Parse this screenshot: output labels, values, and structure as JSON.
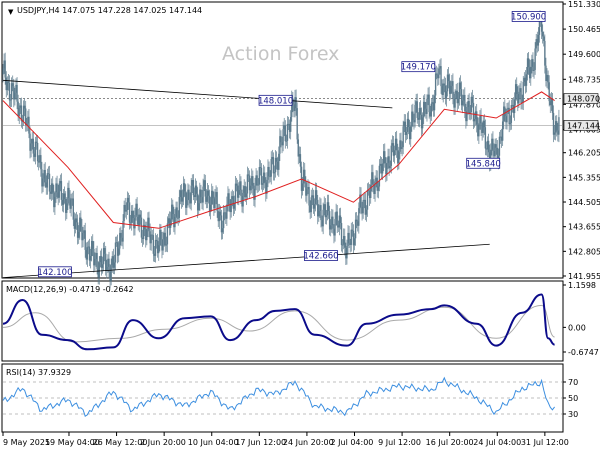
{
  "watermark": "Action Forex",
  "main": {
    "header": "USDJPY,H4  147.075 147.228 147.025 147.144",
    "price_ticks": [
      "151.330",
      "150.465",
      "149.600",
      "148.735",
      "147.870",
      "147.005",
      "146.205",
      "145.355",
      "144.505",
      "143.655",
      "142.805",
      "141.955"
    ],
    "current_price": "147.144",
    "level_price": "148.070",
    "annotations": [
      {
        "label": "150.900",
        "value": 150.9
      },
      {
        "label": "149.170",
        "value": 149.17
      },
      {
        "label": "148.010",
        "value": 148.01
      },
      {
        "label": "145.840",
        "value": 145.84
      },
      {
        "label": "142.660",
        "value": 142.66
      },
      {
        "label": "142.100",
        "value": 142.1
      }
    ]
  },
  "macd": {
    "header": "MACD(12,26,9) -0.4719 -0.2642",
    "ticks": [
      "1.1598",
      "0.00",
      "-0.6747"
    ]
  },
  "rsi": {
    "header": "RSI(14) 37.9329",
    "ticks": [
      "70",
      "50",
      "30"
    ]
  },
  "x_ticks": [
    "9 May 2025",
    "19 May 04:00",
    "26 May 12:00",
    "2 Jun 20:00",
    "10 Jun 04:00",
    "17 Jun 12:00",
    "24 Jun 20:00",
    "2 Jul 04:00",
    "9 Jul 12:00",
    "16 Jul 20:00",
    "24 Jul 04:00",
    "31 Jul 12:00"
  ],
  "colors": {
    "candle": "#5b7a8c",
    "ma": "#e02020",
    "macd_line": "#0b0b8a",
    "signal": "#aaaaaa",
    "rsi": "#3d8fe0",
    "trend": "#000000",
    "annotation_border": "#1a1a8c"
  },
  "chart_data": [
    {
      "type": "candlestick",
      "title": "USDJPY,H4",
      "ylim": [
        141.955,
        151.33
      ],
      "ohlc_last": {
        "open": 147.075,
        "high": 147.228,
        "low": 147.025,
        "close": 147.144
      },
      "close_path": [
        {
          "x": "2025-05-09",
          "y": 148.9
        },
        {
          "x": "2025-05-12",
          "y": 147.6
        },
        {
          "x": "2025-05-14",
          "y": 146.2
        },
        {
          "x": "2025-05-16",
          "y": 145.0
        },
        {
          "x": "2025-05-19",
          "y": 144.6
        },
        {
          "x": "2025-05-21",
          "y": 143.4
        },
        {
          "x": "2025-05-23",
          "y": 142.5
        },
        {
          "x": "2025-05-26",
          "y": 142.3
        },
        {
          "x": "2025-05-28",
          "y": 144.3
        },
        {
          "x": "2025-05-30",
          "y": 143.8
        },
        {
          "x": "2025-06-02",
          "y": 142.9
        },
        {
          "x": "2025-06-04",
          "y": 143.9
        },
        {
          "x": "2025-06-06",
          "y": 144.8
        },
        {
          "x": "2025-06-10",
          "y": 144.7
        },
        {
          "x": "2025-06-12",
          "y": 143.8
        },
        {
          "x": "2025-06-13",
          "y": 144.6
        },
        {
          "x": "2025-06-17",
          "y": 145.2
        },
        {
          "x": "2025-06-19",
          "y": 145.4
        },
        {
          "x": "2025-06-20",
          "y": 145.9
        },
        {
          "x": "2025-06-23",
          "y": 147.9
        },
        {
          "x": "2025-06-24",
          "y": 145.2
        },
        {
          "x": "2025-06-26",
          "y": 144.4
        },
        {
          "x": "2025-06-30",
          "y": 143.6
        },
        {
          "x": "2025-07-01",
          "y": 142.8
        },
        {
          "x": "2025-07-03",
          "y": 144.2
        },
        {
          "x": "2025-07-07",
          "y": 145.9
        },
        {
          "x": "2025-07-09",
          "y": 146.4
        },
        {
          "x": "2025-07-11",
          "y": 147.4
        },
        {
          "x": "2025-07-14",
          "y": 147.8
        },
        {
          "x": "2025-07-15",
          "y": 148.9
        },
        {
          "x": "2025-07-16",
          "y": 148.5
        },
        {
          "x": "2025-07-18",
          "y": 148.2
        },
        {
          "x": "2025-07-21",
          "y": 147.4
        },
        {
          "x": "2025-07-23",
          "y": 146.3
        },
        {
          "x": "2025-07-24",
          "y": 146.1
        },
        {
          "x": "2025-07-25",
          "y": 147.2
        },
        {
          "x": "2025-07-28",
          "y": 148.4
        },
        {
          "x": "2025-07-30",
          "y": 149.6
        },
        {
          "x": "2025-07-31",
          "y": 150.8
        },
        {
          "x": "2025-08-01",
          "y": 148.2
        },
        {
          "x": "2025-08-02",
          "y": 147.144
        }
      ],
      "moving_average": [
        {
          "x": "2025-05-09",
          "y": 148.0
        },
        {
          "x": "2025-05-19",
          "y": 145.7
        },
        {
          "x": "2025-05-26",
          "y": 143.8
        },
        {
          "x": "2025-06-02",
          "y": 143.6
        },
        {
          "x": "2025-06-10",
          "y": 144.2
        },
        {
          "x": "2025-06-17",
          "y": 144.7
        },
        {
          "x": "2025-06-24",
          "y": 145.3
        },
        {
          "x": "2025-07-02",
          "y": 144.5
        },
        {
          "x": "2025-07-09",
          "y": 145.8
        },
        {
          "x": "2025-07-16",
          "y": 147.7
        },
        {
          "x": "2025-07-24",
          "y": 147.4
        },
        {
          "x": "2025-07-31",
          "y": 148.3
        },
        {
          "x": "2025-08-02",
          "y": 148.0
        }
      ],
      "trendlines": [
        {
          "from": {
            "x": "2025-05-09",
            "y": 148.7
          },
          "to": {
            "x": "2025-07-08",
            "y": 147.75
          }
        },
        {
          "from": {
            "x": "2025-05-09",
            "y": 141.9
          },
          "to": {
            "x": "2025-07-23",
            "y": 143.05
          }
        }
      ]
    },
    {
      "type": "line",
      "title": "MACD(12,26,9)",
      "ylim": [
        -0.6747,
        1.1598
      ],
      "series": [
        {
          "name": "MACD",
          "values": [
            {
              "x": "2025-05-09",
              "y": 0.1
            },
            {
              "x": "2025-05-12",
              "y": 0.75
            },
            {
              "x": "2025-05-15",
              "y": -0.2
            },
            {
              "x": "2025-05-19",
              "y": -0.35
            },
            {
              "x": "2025-05-22",
              "y": -0.6
            },
            {
              "x": "2025-05-26",
              "y": -0.55
            },
            {
              "x": "2025-05-29",
              "y": 0.2
            },
            {
              "x": "2025-06-02",
              "y": -0.3
            },
            {
              "x": "2025-06-06",
              "y": 0.25
            },
            {
              "x": "2025-06-10",
              "y": 0.3
            },
            {
              "x": "2025-06-13",
              "y": -0.35
            },
            {
              "x": "2025-06-17",
              "y": 0.2
            },
            {
              "x": "2025-06-20",
              "y": 0.45
            },
            {
              "x": "2025-06-23",
              "y": 0.5
            },
            {
              "x": "2025-06-26",
              "y": -0.2
            },
            {
              "x": "2025-07-01",
              "y": -0.5
            },
            {
              "x": "2025-07-04",
              "y": 0.1
            },
            {
              "x": "2025-07-09",
              "y": 0.35
            },
            {
              "x": "2025-07-14",
              "y": 0.5
            },
            {
              "x": "2025-07-16",
              "y": 0.6
            },
            {
              "x": "2025-07-21",
              "y": 0.1
            },
            {
              "x": "2025-07-24",
              "y": -0.5
            },
            {
              "x": "2025-07-28",
              "y": 0.4
            },
            {
              "x": "2025-07-31",
              "y": 0.9
            },
            {
              "x": "2025-08-01",
              "y": -0.3
            },
            {
              "x": "2025-08-02",
              "y": -0.4719
            }
          ]
        },
        {
          "name": "Signal",
          "values": [
            {
              "x": "2025-05-09",
              "y": 0.0
            },
            {
              "x": "2025-05-14",
              "y": 0.4
            },
            {
              "x": "2025-05-20",
              "y": -0.4
            },
            {
              "x": "2025-05-27",
              "y": -0.3
            },
            {
              "x": "2025-06-03",
              "y": -0.05
            },
            {
              "x": "2025-06-10",
              "y": 0.25
            },
            {
              "x": "2025-06-16",
              "y": -0.1
            },
            {
              "x": "2025-06-23",
              "y": 0.45
            },
            {
              "x": "2025-07-01",
              "y": -0.35
            },
            {
              "x": "2025-07-09",
              "y": 0.2
            },
            {
              "x": "2025-07-16",
              "y": 0.55
            },
            {
              "x": "2025-07-24",
              "y": -0.3
            },
            {
              "x": "2025-07-31",
              "y": 0.6
            },
            {
              "x": "2025-08-02",
              "y": -0.2642
            }
          ]
        }
      ]
    },
    {
      "type": "line",
      "title": "RSI(14)",
      "ylim": [
        10,
        90
      ],
      "levels": [
        70,
        50,
        30
      ],
      "series": [
        {
          "name": "RSI",
          "values": [
            {
              "x": "2025-05-09",
              "y": 45
            },
            {
              "x": "2025-05-12",
              "y": 62
            },
            {
              "x": "2025-05-15",
              "y": 35
            },
            {
              "x": "2025-05-19",
              "y": 48
            },
            {
              "x": "2025-05-22",
              "y": 30
            },
            {
              "x": "2025-05-26",
              "y": 58
            },
            {
              "x": "2025-05-29",
              "y": 35
            },
            {
              "x": "2025-06-02",
              "y": 55
            },
            {
              "x": "2025-06-06",
              "y": 40
            },
            {
              "x": "2025-06-10",
              "y": 58
            },
            {
              "x": "2025-06-13",
              "y": 35
            },
            {
              "x": "2025-06-17",
              "y": 60
            },
            {
              "x": "2025-06-20",
              "y": 55
            },
            {
              "x": "2025-06-23",
              "y": 70
            },
            {
              "x": "2025-06-26",
              "y": 40
            },
            {
              "x": "2025-07-01",
              "y": 32
            },
            {
              "x": "2025-07-04",
              "y": 55
            },
            {
              "x": "2025-07-09",
              "y": 65
            },
            {
              "x": "2025-07-14",
              "y": 60
            },
            {
              "x": "2025-07-16",
              "y": 72
            },
            {
              "x": "2025-07-21",
              "y": 50
            },
            {
              "x": "2025-07-24",
              "y": 32
            },
            {
              "x": "2025-07-28",
              "y": 62
            },
            {
              "x": "2025-07-31",
              "y": 70
            },
            {
              "x": "2025-08-01",
              "y": 40
            },
            {
              "x": "2025-08-02",
              "y": 37.9329
            }
          ]
        }
      ]
    }
  ]
}
